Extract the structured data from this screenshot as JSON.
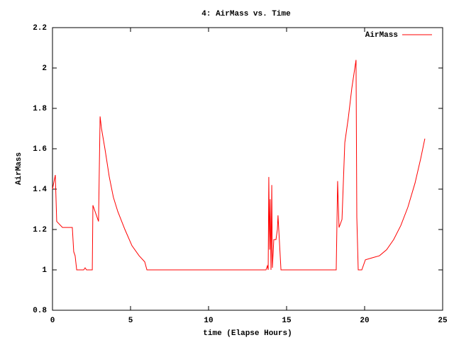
{
  "chart_data": {
    "type": "line",
    "title": "4: AirMass vs. Time",
    "xlabel": "time (Elapse Hours)",
    "ylabel": "AirMass",
    "x": [
      0,
      0.18,
      0.27,
      0.64,
      1.27,
      1.36,
      1.45,
      1.55,
      2.0,
      2.09,
      2.18,
      2.55,
      2.59,
      2.95,
      3.05,
      3.14,
      3.36,
      3.64,
      3.9,
      4.18,
      4.64,
      5.09,
      5.55,
      5.91,
      6.05,
      13.68,
      13.77,
      13.82,
      13.86,
      13.91,
      13.95,
      14.0,
      14.05,
      14.09,
      14.18,
      14.32,
      14.41,
      14.45,
      14.64,
      18.18,
      18.27,
      18.36,
      18.55,
      18.73,
      18.95,
      19.18,
      19.45,
      19.5,
      19.59,
      19.82,
      20.05,
      20.5,
      20.95,
      21.41,
      21.86,
      22.32,
      22.77,
      23.23,
      23.59,
      23.86
    ],
    "series": [
      {
        "name": "AirMass",
        "color": "#ff0000",
        "values": [
          1.4,
          1.47,
          1.24,
          1.21,
          1.21,
          1.09,
          1.07,
          1.0,
          1.0,
          1.01,
          1.0,
          1.0,
          1.32,
          1.24,
          1.76,
          1.7,
          1.6,
          1.46,
          1.36,
          1.29,
          1.2,
          1.12,
          1.07,
          1.04,
          1.0,
          1.0,
          1.02,
          1.0,
          1.46,
          1.1,
          1.35,
          1.0,
          1.42,
          1.01,
          1.15,
          1.15,
          1.2,
          1.27,
          1.0,
          1.0,
          1.44,
          1.21,
          1.25,
          1.63,
          1.75,
          1.9,
          2.04,
          1.26,
          1.0,
          1.0,
          1.05,
          1.06,
          1.07,
          1.1,
          1.15,
          1.22,
          1.31,
          1.43,
          1.55,
          1.65
        ]
      }
    ],
    "xlim": [
      0,
      25
    ],
    "xticks": [
      0,
      5,
      10,
      15,
      20,
      25
    ],
    "ylim": [
      0.8,
      2.2
    ],
    "yticks": [
      0.8,
      1,
      1.2,
      1.4,
      1.6,
      1.8,
      2,
      2.2
    ],
    "legend": "upper right"
  }
}
